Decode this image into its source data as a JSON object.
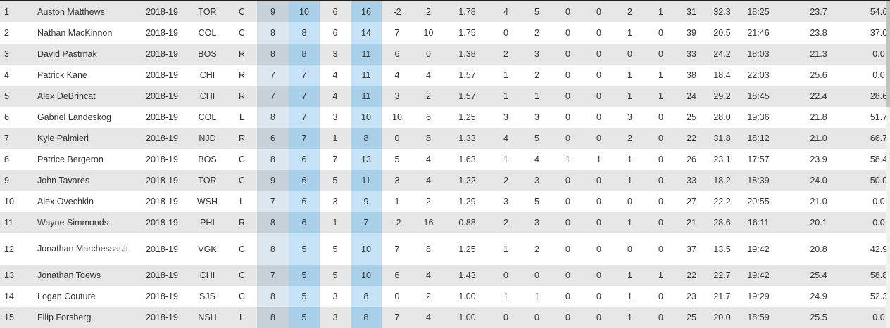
{
  "colors": {
    "row_alt": "#e6e6e6",
    "row_base": "#ffffff",
    "highlight_base": "#c5e2f6",
    "highlight_alt": "#a9cfe9",
    "gp_base": "#dde7ef",
    "gp_alt": "#c6d1da"
  },
  "rows": [
    {
      "rank": "1",
      "player": "Auston Matthews",
      "season": "2018-19",
      "team": "TOR",
      "pos": "C",
      "gp": "9",
      "g": "10",
      "a": "6",
      "p": "16",
      "pm": "-2",
      "pim": "2",
      "ppg": "1.78",
      "evg": "4",
      "evp": "5",
      "ppg2": "0",
      "ppp": "0",
      "gwg": "2",
      "otg": "1",
      "s": "31",
      "spct": "32.3",
      "toi": "18:25",
      "shifts": "23.7",
      "fow": "54.6"
    },
    {
      "rank": "2",
      "player": "Nathan MacKinnon",
      "season": "2018-19",
      "team": "COL",
      "pos": "C",
      "gp": "8",
      "g": "8",
      "a": "6",
      "p": "14",
      "pm": "7",
      "pim": "10",
      "ppg": "1.75",
      "evg": "0",
      "evp": "2",
      "ppg2": "0",
      "ppp": "0",
      "gwg": "1",
      "otg": "0",
      "s": "39",
      "spct": "20.5",
      "toi": "21:46",
      "shifts": "23.8",
      "fow": "37.0"
    },
    {
      "rank": "3",
      "player": "David Pastrnak",
      "season": "2018-19",
      "team": "BOS",
      "pos": "R",
      "gp": "8",
      "g": "8",
      "a": "3",
      "p": "11",
      "pm": "6",
      "pim": "0",
      "ppg": "1.38",
      "evg": "2",
      "evp": "3",
      "ppg2": "0",
      "ppp": "0",
      "gwg": "0",
      "otg": "0",
      "s": "33",
      "spct": "24.2",
      "toi": "18:03",
      "shifts": "21.3",
      "fow": "0.0"
    },
    {
      "rank": "4",
      "player": "Patrick Kane",
      "season": "2018-19",
      "team": "CHI",
      "pos": "R",
      "gp": "7",
      "g": "7",
      "a": "4",
      "p": "11",
      "pm": "4",
      "pim": "4",
      "ppg": "1.57",
      "evg": "1",
      "evp": "2",
      "ppg2": "0",
      "ppp": "0",
      "gwg": "1",
      "otg": "1",
      "s": "38",
      "spct": "18.4",
      "toi": "22:03",
      "shifts": "25.6",
      "fow": "0.0"
    },
    {
      "rank": "5",
      "player": "Alex DeBrincat",
      "season": "2018-19",
      "team": "CHI",
      "pos": "R",
      "gp": "7",
      "g": "7",
      "a": "4",
      "p": "11",
      "pm": "3",
      "pim": "2",
      "ppg": "1.57",
      "evg": "1",
      "evp": "1",
      "ppg2": "0",
      "ppp": "0",
      "gwg": "1",
      "otg": "1",
      "s": "24",
      "spct": "29.2",
      "toi": "18:45",
      "shifts": "22.4",
      "fow": "28.6"
    },
    {
      "rank": "6",
      "player": "Gabriel Landeskog",
      "season": "2018-19",
      "team": "COL",
      "pos": "L",
      "gp": "8",
      "g": "7",
      "a": "3",
      "p": "10",
      "pm": "10",
      "pim": "6",
      "ppg": "1.25",
      "evg": "3",
      "evp": "3",
      "ppg2": "0",
      "ppp": "0",
      "gwg": "3",
      "otg": "0",
      "s": "25",
      "spct": "28.0",
      "toi": "19:36",
      "shifts": "21.8",
      "fow": "51.7"
    },
    {
      "rank": "7",
      "player": "Kyle Palmieri",
      "season": "2018-19",
      "team": "NJD",
      "pos": "R",
      "gp": "6",
      "g": "7",
      "a": "1",
      "p": "8",
      "pm": "0",
      "pim": "8",
      "ppg": "1.33",
      "evg": "4",
      "evp": "5",
      "ppg2": "0",
      "ppp": "0",
      "gwg": "2",
      "otg": "0",
      "s": "22",
      "spct": "31.8",
      "toi": "18:12",
      "shifts": "21.0",
      "fow": "66.7"
    },
    {
      "rank": "8",
      "player": "Patrice Bergeron",
      "season": "2018-19",
      "team": "BOS",
      "pos": "C",
      "gp": "8",
      "g": "6",
      "a": "7",
      "p": "13",
      "pm": "5",
      "pim": "4",
      "ppg": "1.63",
      "evg": "1",
      "evp": "4",
      "ppg2": "1",
      "ppp": "1",
      "gwg": "1",
      "otg": "0",
      "s": "26",
      "spct": "23.1",
      "toi": "17:57",
      "shifts": "23.9",
      "fow": "58.4"
    },
    {
      "rank": "9",
      "player": "John Tavares",
      "season": "2018-19",
      "team": "TOR",
      "pos": "C",
      "gp": "9",
      "g": "6",
      "a": "5",
      "p": "11",
      "pm": "3",
      "pim": "4",
      "ppg": "1.22",
      "evg": "2",
      "evp": "3",
      "ppg2": "0",
      "ppp": "0",
      "gwg": "1",
      "otg": "0",
      "s": "33",
      "spct": "18.2",
      "toi": "18:39",
      "shifts": "24.0",
      "fow": "50.0"
    },
    {
      "rank": "10",
      "player": "Alex Ovechkin",
      "season": "2018-19",
      "team": "WSH",
      "pos": "L",
      "gp": "7",
      "g": "6",
      "a": "3",
      "p": "9",
      "pm": "1",
      "pim": "2",
      "ppg": "1.29",
      "evg": "3",
      "evp": "5",
      "ppg2": "0",
      "ppp": "0",
      "gwg": "0",
      "otg": "0",
      "s": "27",
      "spct": "22.2",
      "toi": "20:55",
      "shifts": "21.0",
      "fow": "0.0"
    },
    {
      "rank": "11",
      "player": "Wayne Simmonds",
      "season": "2018-19",
      "team": "PHI",
      "pos": "R",
      "gp": "8",
      "g": "6",
      "a": "1",
      "p": "7",
      "pm": "-2",
      "pim": "16",
      "ppg": "0.88",
      "evg": "2",
      "evp": "3",
      "ppg2": "0",
      "ppp": "0",
      "gwg": "1",
      "otg": "0",
      "s": "21",
      "spct": "28.6",
      "toi": "16:11",
      "shifts": "20.1",
      "fow": "0.0"
    },
    {
      "rank": "12",
      "player": "Jonathan Marchessault",
      "season": "2018-19",
      "team": "VGK",
      "pos": "C",
      "gp": "8",
      "g": "5",
      "a": "5",
      "p": "10",
      "pm": "7",
      "pim": "8",
      "ppg": "1.25",
      "evg": "1",
      "evp": "2",
      "ppg2": "0",
      "ppp": "0",
      "gwg": "0",
      "otg": "0",
      "s": "37",
      "spct": "13.5",
      "toi": "19:42",
      "shifts": "20.8",
      "fow": "42.9"
    },
    {
      "rank": "13",
      "player": "Jonathan Toews",
      "season": "2018-19",
      "team": "CHI",
      "pos": "C",
      "gp": "7",
      "g": "5",
      "a": "5",
      "p": "10",
      "pm": "6",
      "pim": "4",
      "ppg": "1.43",
      "evg": "0",
      "evp": "0",
      "ppg2": "0",
      "ppp": "0",
      "gwg": "1",
      "otg": "1",
      "s": "22",
      "spct": "22.7",
      "toi": "19:42",
      "shifts": "25.4",
      "fow": "58.8"
    },
    {
      "rank": "14",
      "player": "Logan Couture",
      "season": "2018-19",
      "team": "SJS",
      "pos": "C",
      "gp": "8",
      "g": "5",
      "a": "3",
      "p": "8",
      "pm": "0",
      "pim": "2",
      "ppg": "1.00",
      "evg": "1",
      "evp": "1",
      "ppg2": "0",
      "ppp": "0",
      "gwg": "1",
      "otg": "0",
      "s": "23",
      "spct": "21.7",
      "toi": "19:29",
      "shifts": "24.9",
      "fow": "52.3"
    },
    {
      "rank": "15",
      "player": "Filip Forsberg",
      "season": "2018-19",
      "team": "NSH",
      "pos": "L",
      "gp": "8",
      "g": "5",
      "a": "3",
      "p": "8",
      "pm": "7",
      "pim": "4",
      "ppg": "1.00",
      "evg": "0",
      "evp": "0",
      "ppg2": "0",
      "ppp": "0",
      "gwg": "1",
      "otg": "0",
      "s": "25",
      "spct": "20.0",
      "toi": "18:59",
      "shifts": "25.5",
      "fow": "0.0"
    }
  ]
}
